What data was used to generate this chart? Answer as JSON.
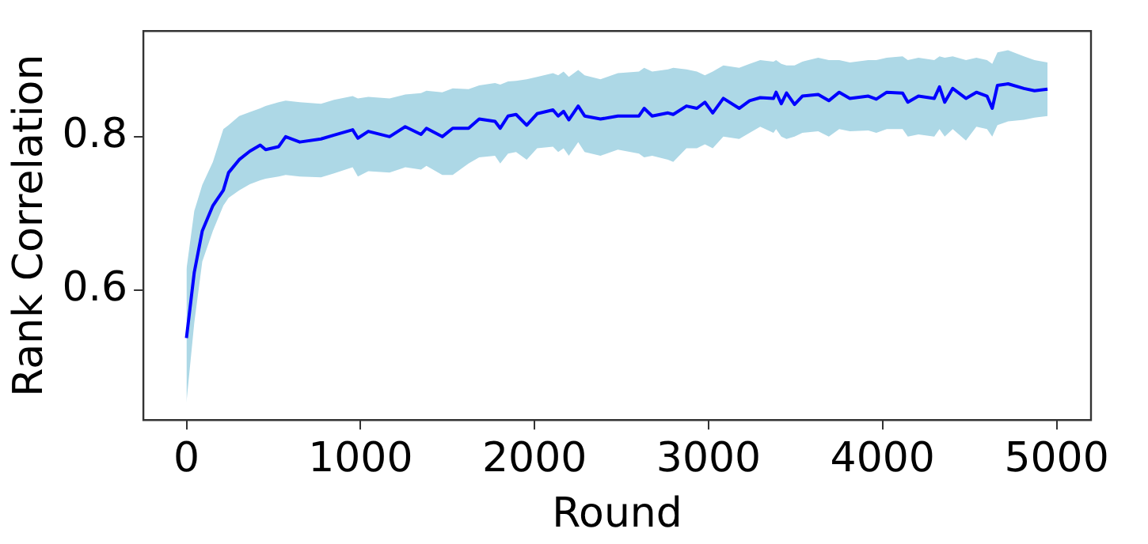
{
  "chart_data": {
    "type": "line",
    "xlabel": "Round",
    "ylabel": "Rank Correlation",
    "xlim": [
      -247.5,
      5197.5
    ],
    "xticks": [
      0,
      1000,
      2000,
      3000,
      4000,
      5000
    ],
    "ylim": [
      0.43,
      0.938
    ],
    "yticks": [
      0.6,
      0.8
    ],
    "grid": false,
    "legend": false,
    "marker": "none",
    "line_style": "solid",
    "series": [
      {
        "color": "#0000ff",
        "x": [
          0,
          45,
          91,
          152,
          212,
          242,
          303,
          364,
          424,
          455,
          530,
          570,
          651,
          773,
          848,
          955,
          985,
          1045,
          1167,
          1257,
          1348,
          1379,
          1470,
          1530,
          1621,
          1682,
          1773,
          1803,
          1848,
          1894,
          1955,
          2015,
          2106,
          2136,
          2167,
          2197,
          2251,
          2288,
          2379,
          2479,
          2600,
          2630,
          2676,
          2767,
          2797,
          2873,
          2933,
          2979,
          3024,
          3085,
          3176,
          3236,
          3297,
          3373,
          3388,
          3418,
          3448,
          3494,
          3539,
          3630,
          3691,
          3751,
          3812,
          3918,
          3964,
          4024,
          4115,
          4145,
          4206,
          4297,
          4327,
          4357,
          4403,
          4479,
          4539,
          4600,
          4630,
          4660,
          4721,
          4812,
          4873,
          4948
        ],
        "values": [
          0.537,
          0.623,
          0.677,
          0.71,
          0.73,
          0.753,
          0.77,
          0.781,
          0.789,
          0.783,
          0.787,
          0.8,
          0.793,
          0.797,
          0.802,
          0.809,
          0.798,
          0.807,
          0.8,
          0.813,
          0.803,
          0.811,
          0.8,
          0.811,
          0.811,
          0.823,
          0.82,
          0.811,
          0.827,
          0.829,
          0.815,
          0.83,
          0.835,
          0.827,
          0.833,
          0.822,
          0.84,
          0.827,
          0.823,
          0.827,
          0.827,
          0.837,
          0.827,
          0.831,
          0.829,
          0.84,
          0.837,
          0.845,
          0.831,
          0.85,
          0.837,
          0.847,
          0.851,
          0.85,
          0.858,
          0.843,
          0.857,
          0.842,
          0.853,
          0.855,
          0.847,
          0.858,
          0.85,
          0.853,
          0.849,
          0.858,
          0.857,
          0.845,
          0.853,
          0.85,
          0.865,
          0.845,
          0.863,
          0.85,
          0.858,
          0.853,
          0.837,
          0.867,
          0.869,
          0.863,
          0.86,
          0.862
        ],
        "lower": [
          0.453,
          0.557,
          0.637,
          0.677,
          0.71,
          0.72,
          0.73,
          0.738,
          0.743,
          0.745,
          0.748,
          0.75,
          0.748,
          0.747,
          0.752,
          0.76,
          0.748,
          0.755,
          0.753,
          0.76,
          0.757,
          0.762,
          0.75,
          0.75,
          0.765,
          0.773,
          0.775,
          0.765,
          0.778,
          0.78,
          0.77,
          0.785,
          0.787,
          0.78,
          0.785,
          0.775,
          0.793,
          0.78,
          0.775,
          0.783,
          0.778,
          0.773,
          0.775,
          0.77,
          0.767,
          0.785,
          0.785,
          0.79,
          0.785,
          0.8,
          0.797,
          0.805,
          0.813,
          0.805,
          0.81,
          0.8,
          0.797,
          0.8,
          0.805,
          0.807,
          0.8,
          0.81,
          0.807,
          0.808,
          0.805,
          0.81,
          0.81,
          0.8,
          0.803,
          0.8,
          0.81,
          0.8,
          0.81,
          0.795,
          0.813,
          0.81,
          0.8,
          0.815,
          0.82,
          0.822,
          0.825,
          0.827
        ],
        "upper": [
          0.627,
          0.703,
          0.737,
          0.767,
          0.81,
          0.815,
          0.827,
          0.832,
          0.837,
          0.84,
          0.845,
          0.847,
          0.845,
          0.843,
          0.848,
          0.853,
          0.85,
          0.852,
          0.85,
          0.855,
          0.857,
          0.86,
          0.858,
          0.863,
          0.862,
          0.867,
          0.87,
          0.868,
          0.872,
          0.873,
          0.875,
          0.878,
          0.883,
          0.88,
          0.885,
          0.878,
          0.887,
          0.88,
          0.875,
          0.883,
          0.885,
          0.89,
          0.885,
          0.888,
          0.89,
          0.888,
          0.885,
          0.88,
          0.885,
          0.893,
          0.89,
          0.895,
          0.9,
          0.898,
          0.9,
          0.895,
          0.893,
          0.893,
          0.898,
          0.903,
          0.9,
          0.9,
          0.897,
          0.9,
          0.9,
          0.903,
          0.905,
          0.9,
          0.903,
          0.9,
          0.905,
          0.903,
          0.905,
          0.9,
          0.903,
          0.9,
          0.895,
          0.91,
          0.913,
          0.905,
          0.9,
          0.897
        ]
      }
    ]
  }
}
